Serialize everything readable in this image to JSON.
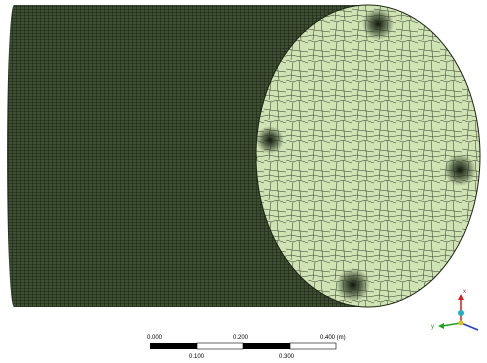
{
  "scale_bar": {
    "labels_top": [
      "0.000",
      "0.200",
      "0.400 (m)"
    ],
    "labels_bottom": [
      "0.100",
      "0.300"
    ]
  },
  "triad": {
    "x_label": "x",
    "y_label": "y"
  }
}
